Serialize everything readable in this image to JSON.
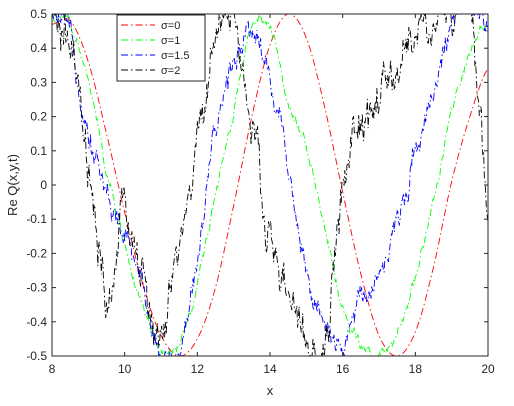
{
  "chart_data": {
    "type": "line",
    "title": "",
    "xlabel": "x",
    "ylabel": "Re Q(x,y,t)",
    "xlim": [
      8,
      20
    ],
    "ylim": [
      -0.5,
      0.5
    ],
    "xticks": [
      "8",
      "10",
      "12",
      "14",
      "16",
      "18",
      "20"
    ],
    "yticks": [
      "-0.5",
      "-0.4",
      "-0.3",
      "-0.2",
      "-0.1",
      "0",
      "0.1",
      "0.2",
      "0.3",
      "0.4",
      "0.5"
    ],
    "grid": false,
    "legend_position": "top-left",
    "series": [
      {
        "name": "σ=0",
        "color": "#ff0000",
        "dash": "dash-dot",
        "x": [
          8.0,
          8.5,
          9.0,
          9.5,
          10.0,
          10.5,
          11.0,
          11.5,
          12.0,
          12.5,
          13.0,
          13.5,
          14.0,
          14.5,
          15.0,
          15.5,
          16.0,
          16.5,
          17.0,
          17.5,
          18.0,
          18.5,
          19.0,
          19.5,
          20.0
        ],
        "y": [
          0.47,
          0.48,
          0.36,
          0.15,
          -0.08,
          -0.29,
          -0.44,
          -0.5,
          -0.45,
          -0.3,
          -0.06,
          0.2,
          0.41,
          0.5,
          0.43,
          0.23,
          -0.02,
          -0.26,
          -0.44,
          -0.5,
          -0.43,
          -0.24,
          0.01,
          0.2,
          0.34
        ]
      },
      {
        "name": "σ=1",
        "color": "#00ff00",
        "dash": "dash-dot",
        "x": [
          8.0,
          8.5,
          9.0,
          9.5,
          10.0,
          10.5,
          11.0,
          11.5,
          12.0,
          12.5,
          13.0,
          13.5,
          14.0,
          14.5,
          15.0,
          15.5,
          16.0,
          16.5,
          17.0,
          17.5,
          18.0,
          18.5,
          19.0,
          19.5,
          20.0
        ],
        "y": [
          0.49,
          0.47,
          0.3,
          0.04,
          -0.17,
          -0.37,
          -0.49,
          -0.47,
          -0.3,
          -0.02,
          0.22,
          0.47,
          0.45,
          0.25,
          0.12,
          -0.12,
          -0.36,
          -0.47,
          -0.5,
          -0.45,
          -0.26,
          -0.05,
          0.21,
          0.37,
          0.46
        ]
      },
      {
        "name": "σ=1.5",
        "color": "#0000ff",
        "dash": "dash-dot",
        "x": [
          8.0,
          8.5,
          9.0,
          9.5,
          10.0,
          10.5,
          11.0,
          11.5,
          12.0,
          12.5,
          13.0,
          13.5,
          14.0,
          14.5,
          15.0,
          15.5,
          16.0,
          16.5,
          17.0,
          17.5,
          18.0,
          18.5,
          19.0,
          19.5,
          20.0
        ],
        "y": [
          0.5,
          0.41,
          0.18,
          -0.02,
          -0.16,
          -0.3,
          -0.48,
          -0.5,
          -0.2,
          0.13,
          0.37,
          0.47,
          0.31,
          0.07,
          -0.24,
          -0.43,
          -0.49,
          -0.32,
          -0.24,
          -0.12,
          0.11,
          0.29,
          0.47,
          0.5,
          0.49
        ]
      },
      {
        "name": "σ=2",
        "color": "#000000",
        "dash": "dash-dot",
        "x": [
          8.0,
          8.5,
          9.0,
          9.5,
          10.0,
          10.5,
          11.0,
          11.5,
          12.0,
          12.5,
          13.0,
          13.5,
          14.0,
          14.5,
          15.0,
          15.5,
          16.0,
          16.5,
          17.0,
          17.5,
          18.0,
          18.5,
          19.0,
          19.5,
          20.0
        ],
        "y": [
          0.47,
          0.38,
          0.01,
          -0.35,
          -0.1,
          -0.27,
          -0.47,
          -0.2,
          0.1,
          0.45,
          0.5,
          0.14,
          -0.16,
          -0.33,
          -0.48,
          -0.5,
          0.0,
          0.15,
          0.24,
          0.32,
          0.44,
          0.48,
          0.5,
          0.5,
          -0.08
        ]
      }
    ]
  }
}
